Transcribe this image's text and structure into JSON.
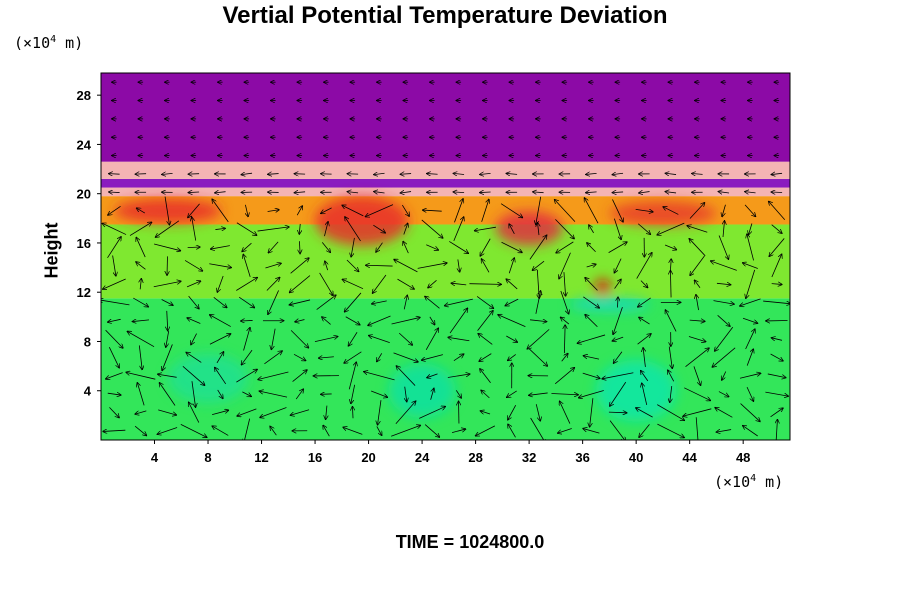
{
  "chart_data": {
    "type": "heatmap",
    "title": "Vertial Potential Temperature Deviation",
    "ylabel": "Height",
    "y_unit": {
      "prefix": "(×10",
      "exponent": "4",
      "suffix": " m)"
    },
    "x_unit": {
      "prefix": "(×10",
      "exponent": "4",
      "suffix": " m)"
    },
    "xlim": [
      0,
      51.5
    ],
    "ylim": [
      0,
      29.8
    ],
    "x_ticks": [
      "4",
      "8",
      "12",
      "16",
      "20",
      "24",
      "28",
      "32",
      "36",
      "40",
      "44",
      "48"
    ],
    "y_ticks": [
      "4",
      "8",
      "12",
      "16",
      "20",
      "24",
      "28"
    ],
    "layers": [
      {
        "name": "lower",
        "y": [
          0,
          11.5
        ],
        "color": "#33e65a"
      },
      {
        "name": "mid",
        "y": [
          11.5,
          17.5
        ],
        "color": "#7fe830"
      },
      {
        "name": "upper",
        "y": [
          17.5,
          19.8
        ],
        "color": "#f59a1a"
      },
      {
        "name": "band-1",
        "y": [
          19.8,
          20.5
        ],
        "color": "#f4b4b4"
      },
      {
        "name": "band-2",
        "y": [
          20.5,
          21.2
        ],
        "color": "#8a1cbf"
      },
      {
        "name": "band-3",
        "y": [
          21.2,
          22.6
        ],
        "color": "#f4b4b4"
      },
      {
        "name": "top",
        "y": [
          22.6,
          29.8
        ],
        "color": "#8c0aa6"
      }
    ],
    "hotspots": [
      {
        "x": 5,
        "y": 18.6,
        "rx": 4,
        "ry": 1,
        "color": "#e8302a"
      },
      {
        "x": 19.5,
        "y": 17.8,
        "rx": 3.5,
        "ry": 2,
        "color": "#e8302a"
      },
      {
        "x": 32,
        "y": 17.2,
        "rx": 2.5,
        "ry": 1.4,
        "color": "#e03040"
      },
      {
        "x": 42,
        "y": 18.4,
        "rx": 4,
        "ry": 1,
        "color": "#e8402a"
      },
      {
        "x": 37.5,
        "y": 12.4,
        "rx": 0.6,
        "ry": 0.7,
        "color": "#e01010"
      },
      {
        "x": 40,
        "y": 4,
        "rx": 3,
        "ry": 2.5,
        "color": "#10e6a8"
      },
      {
        "x": 24,
        "y": 4,
        "rx": 2.5,
        "ry": 2.2,
        "color": "#12e0a0"
      },
      {
        "x": 8,
        "y": 5,
        "rx": 3,
        "ry": 2,
        "color": "#20e090"
      },
      {
        "x": 38,
        "y": 11,
        "rx": 3,
        "ry": 0.5,
        "color": "#18d8c8"
      }
    ],
    "vectors": {
      "columns": 26,
      "rows": 20,
      "max_length": 2.4
    }
  },
  "footer": {
    "time_label": "TIME = 1024800.0"
  }
}
